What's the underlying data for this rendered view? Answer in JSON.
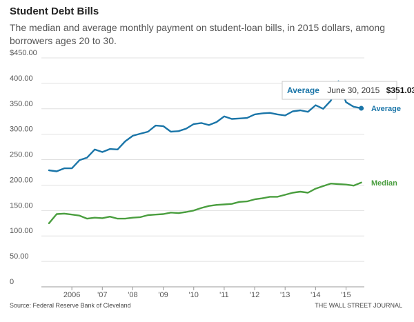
{
  "chart_data": {
    "type": "line",
    "title": "Student Debt Bills",
    "subtitle": "The median and average monthly payment on student-loan bills, in 2015 dollars, among borrowers ages 20 to 30.",
    "y_ticks": [
      "$450.00",
      "400.00",
      "350.00",
      "300.00",
      "250.00",
      "200.00",
      "150.00",
      "100.00",
      "50.00",
      "0"
    ],
    "ylim": [
      0,
      450
    ],
    "x_tick_labels": [
      {
        "label": "2006",
        "year": 2006
      },
      {
        "label": "'07",
        "year": 2007
      },
      {
        "label": "'08",
        "year": 2008
      },
      {
        "label": "'09",
        "year": 2009
      },
      {
        "label": "'10",
        "year": 2010
      },
      {
        "label": "'11",
        "year": 2011
      },
      {
        "label": "'12",
        "year": 2012
      },
      {
        "label": "'13",
        "year": 2013
      },
      {
        "label": "'14",
        "year": 2014
      },
      {
        "label": "'15",
        "year": 2015
      }
    ],
    "xlim": [
      2005.0,
      2015.6
    ],
    "x": [
      2005.25,
      2005.5,
      2005.75,
      2006.0,
      2006.25,
      2006.5,
      2006.75,
      2007.0,
      2007.25,
      2007.5,
      2007.75,
      2008.0,
      2008.25,
      2008.5,
      2008.75,
      2009.0,
      2009.25,
      2009.5,
      2009.75,
      2010.0,
      2010.25,
      2010.5,
      2010.75,
      2011.0,
      2011.25,
      2011.5,
      2011.75,
      2012.0,
      2012.25,
      2012.5,
      2012.75,
      2013.0,
      2013.25,
      2013.5,
      2013.75,
      2014.0,
      2014.25,
      2014.5,
      2014.75,
      2015.0,
      2015.25,
      2015.5
    ],
    "series": [
      {
        "name": "Average",
        "color": "#1a75a8",
        "values": [
          229,
          227,
          233,
          233,
          249,
          254,
          270,
          265,
          271,
          270,
          286,
          297,
          301,
          305,
          317,
          316,
          305,
          306,
          311,
          320,
          322,
          318,
          324,
          335,
          330,
          331,
          332,
          339,
          341,
          342,
          339,
          337,
          345,
          347,
          344,
          357,
          350,
          366,
          404,
          363,
          354,
          351
        ]
      },
      {
        "name": "Median",
        "color": "#4a9e3f",
        "values": [
          125,
          143,
          144,
          142,
          140,
          134,
          136,
          135,
          138,
          134,
          134,
          136,
          137,
          141,
          142,
          143,
          146,
          145,
          147,
          150,
          155,
          159,
          161,
          162,
          163,
          167,
          168,
          172,
          174,
          177,
          177,
          181,
          185,
          187,
          185,
          193,
          198,
          203,
          202,
          201,
          199,
          205
        ]
      }
    ],
    "tooltip": {
      "series": "Average",
      "date": "June 30, 2015",
      "value": "$351.03"
    },
    "source": "Source: Federal Reserve Bank of Cleveland",
    "credit": "THE WALL STREET JOURNAL"
  }
}
